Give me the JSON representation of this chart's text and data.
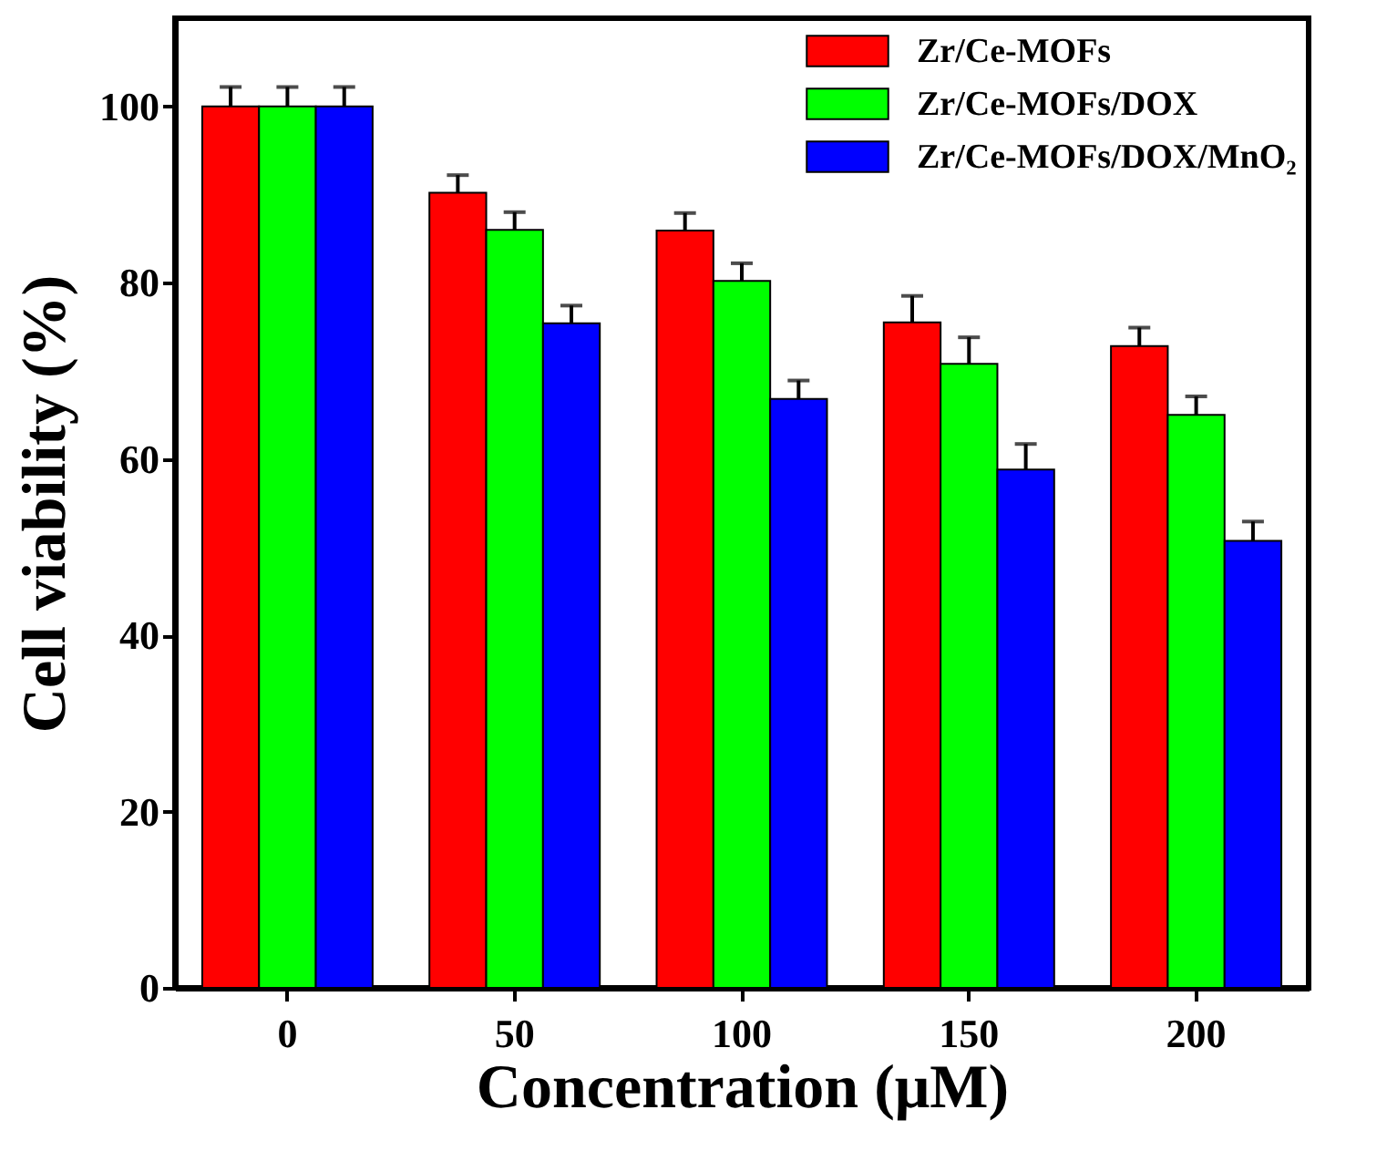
{
  "chart_data": {
    "type": "bar",
    "xlabel": "Concentration (μM)",
    "ylabel": "Cell viability (%)",
    "categories": [
      "0",
      "50",
      "100",
      "150",
      "200"
    ],
    "series": [
      {
        "name": "Zr/Ce-MOFs",
        "color": "#ff0000",
        "values": [
          100,
          90.2,
          85.9,
          75.5,
          72.8
        ],
        "errors": [
          [
            100,
            102.2
          ],
          [
            90.2,
            92.2
          ],
          [
            85.9,
            87.9
          ],
          [
            75.5,
            78.5
          ],
          [
            72.8,
            74.9
          ]
        ]
      },
      {
        "name": "Zr/Ce-MOFs/DOX",
        "color": "#00ff00",
        "values": [
          100,
          86,
          80.2,
          70.8,
          65
        ],
        "errors": [
          [
            100,
            102.2
          ],
          [
            86,
            88
          ],
          [
            80.2,
            82.2
          ],
          [
            70.8,
            73.8
          ],
          [
            65,
            67.1
          ]
        ]
      },
      {
        "name": "Zr/Ce-MOFs/DOX/MnO₂",
        "color": "#0000ff",
        "values": [
          100,
          75.4,
          66.8,
          58.8,
          50.7
        ],
        "errors": [
          [
            100,
            102.2
          ],
          [
            75.4,
            77.4
          ],
          [
            66.8,
            68.9
          ],
          [
            58.8,
            61.7
          ],
          [
            50.7,
            52.9
          ]
        ]
      }
    ],
    "ylim": [
      0,
      110
    ],
    "yticks": [
      0,
      20,
      40,
      60,
      80,
      100
    ],
    "legend": "top right",
    "grid": false
  }
}
